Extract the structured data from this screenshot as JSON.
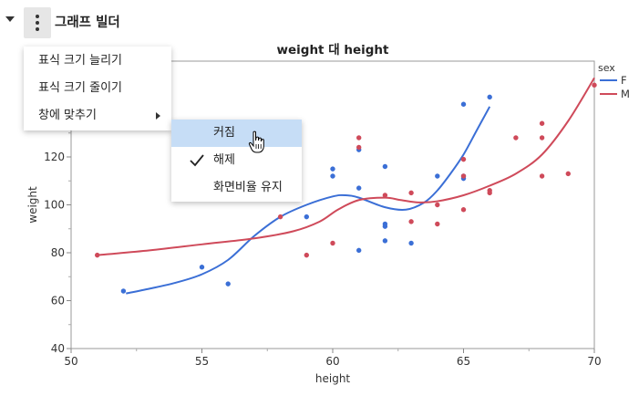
{
  "panel": {
    "title": "그래프 빌더",
    "collapse_icon": "disclosure-triangle-down-icon",
    "menu_icon": "vertical-ellipsis-icon"
  },
  "menu": {
    "items": [
      {
        "label": "표식 크기 늘리기"
      },
      {
        "label": "표식 크기 줄이기"
      },
      {
        "label": "창에 맞추기",
        "has_submenu": true
      }
    ],
    "submenu": [
      {
        "label": "커짐",
        "hovered": true
      },
      {
        "label": "해제",
        "checked": true
      },
      {
        "label": "화면비율 유지"
      }
    ]
  },
  "chart_data": {
    "type": "scatter",
    "title": "weight 대 height",
    "xlabel": "height",
    "ylabel": "weight",
    "xlim": [
      50,
      70
    ],
    "ylim": [
      40,
      160
    ],
    "xticks": [
      50,
      55,
      60,
      65,
      70
    ],
    "yticks": [
      40,
      60,
      80,
      100,
      120,
      140
    ],
    "legend": {
      "title": "sex",
      "position": "right"
    },
    "smoother": true,
    "series": [
      {
        "name": "F",
        "color": "#3b6fd6",
        "points": [
          [
            52,
            64
          ],
          [
            55,
            74
          ],
          [
            56,
            67
          ],
          [
            59,
            95
          ],
          [
            60,
            112
          ],
          [
            60,
            115
          ],
          [
            61,
            123
          ],
          [
            61,
            107
          ],
          [
            61,
            81
          ],
          [
            62,
            116
          ],
          [
            62,
            92
          ],
          [
            62,
            91
          ],
          [
            62,
            85
          ],
          [
            63,
            84
          ],
          [
            64,
            112
          ],
          [
            65,
            142
          ],
          [
            65,
            111
          ],
          [
            65,
            112
          ],
          [
            66,
            145
          ]
        ],
        "smooth": [
          [
            52.1,
            63
          ],
          [
            53,
            65
          ],
          [
            54,
            67.5
          ],
          [
            55,
            71
          ],
          [
            56,
            77
          ],
          [
            57,
            87
          ],
          [
            58,
            95
          ],
          [
            59,
            100
          ],
          [
            60,
            103.5
          ],
          [
            60.5,
            104
          ],
          [
            61,
            103
          ],
          [
            62,
            99
          ],
          [
            62.8,
            98
          ],
          [
            63.5,
            101
          ],
          [
            64,
            106
          ],
          [
            64.5,
            113
          ],
          [
            65,
            121
          ],
          [
            65.5,
            131
          ],
          [
            66,
            141
          ]
        ]
      },
      {
        "name": "M",
        "color": "#cf4a5a",
        "points": [
          [
            51,
            79
          ],
          [
            58,
            95
          ],
          [
            59,
            79
          ],
          [
            60,
            84
          ],
          [
            61,
            128
          ],
          [
            61,
            124
          ],
          [
            62,
            104
          ],
          [
            63,
            105
          ],
          [
            63,
            93
          ],
          [
            64,
            100
          ],
          [
            64,
            92
          ],
          [
            65,
            119
          ],
          [
            65,
            112
          ],
          [
            65,
            98
          ],
          [
            66,
            106
          ],
          [
            66,
            105
          ],
          [
            67,
            128
          ],
          [
            68,
            134
          ],
          [
            68,
            128
          ],
          [
            68,
            112
          ],
          [
            69,
            113
          ],
          [
            70,
            150
          ]
        ],
        "smooth": [
          [
            51,
            79
          ],
          [
            53,
            81
          ],
          [
            55,
            83.5
          ],
          [
            57,
            86
          ],
          [
            58.5,
            89
          ],
          [
            59.5,
            93
          ],
          [
            60.2,
            98
          ],
          [
            61,
            102
          ],
          [
            62,
            103
          ],
          [
            62.6,
            102
          ],
          [
            63.3,
            101
          ],
          [
            64,
            101.5
          ],
          [
            65,
            104
          ],
          [
            66,
            108
          ],
          [
            67,
            113
          ],
          [
            68,
            121
          ],
          [
            69,
            135
          ],
          [
            70,
            153
          ]
        ]
      }
    ]
  }
}
